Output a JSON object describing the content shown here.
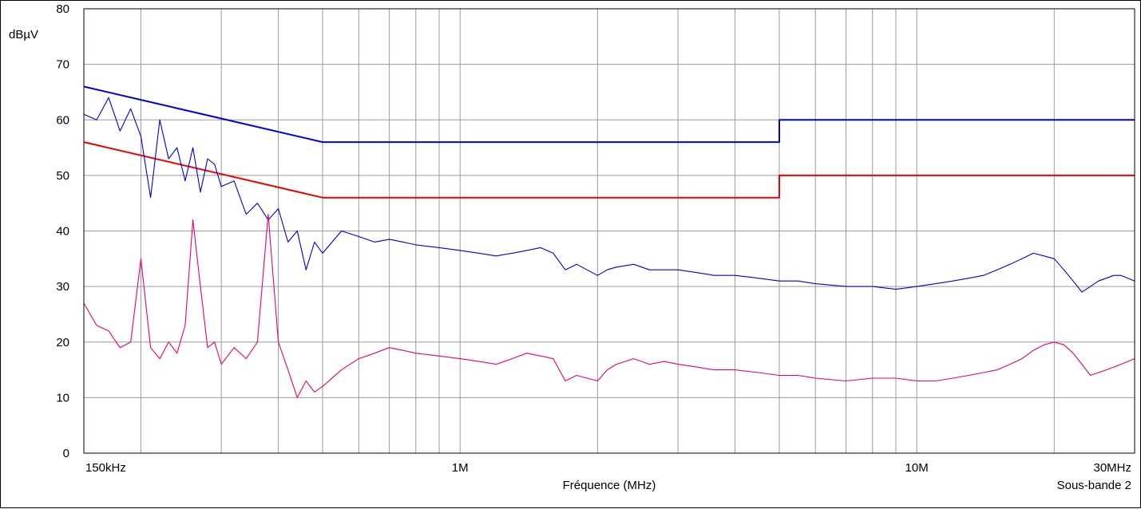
{
  "chart_data": {
    "type": "line",
    "title": "",
    "ylabel": "dBµV",
    "xlabel": "Fréquence (MHz)",
    "sub_label": "Sous-bande 2",
    "x_scale": "log",
    "xlim": [
      0.15,
      30
    ],
    "ylim": [
      0,
      80
    ],
    "grid": true,
    "y_ticks": [
      0,
      10,
      20,
      30,
      40,
      50,
      60,
      70,
      80
    ],
    "y_tick_labels": [
      "0",
      "10",
      "20",
      "30",
      "40",
      "50",
      "60",
      "70",
      "80"
    ],
    "x_ticks": [
      0.15,
      1,
      10,
      30
    ],
    "x_tick_labels": [
      "150kHz",
      "1M",
      "10M",
      "30MHz"
    ],
    "colors": {
      "qp_limit": "#0000dd",
      "avg_limit": "#ee0000",
      "peak_trace": "#0000cc",
      "avg_trace": "#e8006e",
      "grid": "#9a9a9a"
    },
    "series": [
      {
        "key": "qp_limit",
        "x": [
          0.15,
          0.5,
          5,
          5,
          30
        ],
        "y": [
          66,
          56,
          56,
          60,
          60
        ]
      },
      {
        "key": "avg_limit",
        "x": [
          0.15,
          0.5,
          5,
          5,
          30
        ],
        "y": [
          56,
          46,
          46,
          50,
          50
        ]
      },
      {
        "key": "peak_trace",
        "x": [
          0.15,
          0.16,
          0.17,
          0.18,
          0.19,
          0.2,
          0.21,
          0.22,
          0.23,
          0.24,
          0.25,
          0.26,
          0.27,
          0.28,
          0.29,
          0.3,
          0.32,
          0.34,
          0.36,
          0.38,
          0.4,
          0.42,
          0.44,
          0.46,
          0.48,
          0.5,
          0.55,
          0.6,
          0.65,
          0.7,
          0.75,
          0.8,
          0.9,
          1.0,
          1.1,
          1.2,
          1.3,
          1.4,
          1.5,
          1.6,
          1.7,
          1.8,
          2.0,
          2.1,
          2.2,
          2.4,
          2.6,
          2.8,
          3.0,
          3.3,
          3.6,
          4.0,
          4.5,
          5.0,
          5.5,
          6.0,
          7.0,
          8.0,
          9.0,
          10.0,
          11.0,
          12.0,
          13.0,
          14.0,
          15.0,
          16.0,
          17.0,
          18.0,
          19.0,
          20.0,
          21.0,
          22.0,
          23.0,
          24.0,
          25.0,
          26.0,
          27.0,
          28.0,
          29.0,
          30.0
        ],
        "y": [
          61,
          60,
          64,
          58,
          62,
          57,
          46,
          60,
          53,
          55,
          49,
          55,
          47,
          53,
          52,
          48,
          49,
          43,
          45,
          42,
          44,
          38,
          40,
          33,
          38,
          36,
          40,
          39,
          38,
          38.5,
          38,
          37.5,
          37,
          36.5,
          36,
          35.5,
          36,
          36.5,
          37,
          36,
          33,
          34,
          32,
          33,
          33.5,
          34,
          33,
          33,
          33,
          32.5,
          32,
          32,
          31.5,
          31,
          31,
          30.5,
          30,
          30,
          29.5,
          30,
          30.5,
          31,
          31.5,
          32,
          33,
          34,
          35,
          36,
          35.5,
          35,
          33,
          31,
          29,
          30,
          31,
          31.5,
          32,
          32,
          31.5,
          31
        ]
      },
      {
        "key": "avg_trace",
        "x": [
          0.15,
          0.16,
          0.17,
          0.18,
          0.19,
          0.2,
          0.21,
          0.22,
          0.23,
          0.24,
          0.25,
          0.26,
          0.27,
          0.28,
          0.29,
          0.3,
          0.32,
          0.34,
          0.36,
          0.38,
          0.4,
          0.42,
          0.44,
          0.46,
          0.48,
          0.5,
          0.55,
          0.6,
          0.65,
          0.7,
          0.75,
          0.8,
          0.9,
          1.0,
          1.1,
          1.2,
          1.3,
          1.4,
          1.5,
          1.6,
          1.7,
          1.8,
          2.0,
          2.1,
          2.2,
          2.4,
          2.6,
          2.8,
          3.0,
          3.3,
          3.6,
          4.0,
          4.5,
          5.0,
          5.5,
          6.0,
          7.0,
          8.0,
          9.0,
          10.0,
          11.0,
          12.0,
          13.0,
          14.0,
          15.0,
          16.0,
          17.0,
          18.0,
          19.0,
          20.0,
          21.0,
          22.0,
          23.0,
          24.0,
          25.0,
          26.0,
          27.0,
          28.0,
          29.0,
          30.0
        ],
        "y": [
          27,
          23,
          22,
          19,
          20,
          35,
          19,
          17,
          20,
          18,
          23,
          42,
          30,
          19,
          20,
          16,
          19,
          17,
          20,
          43,
          20,
          15,
          10,
          13,
          11,
          12,
          15,
          17,
          18,
          19,
          18.5,
          18,
          17.5,
          17,
          16.5,
          16,
          17,
          18,
          17.5,
          17,
          13,
          14,
          13,
          15,
          16,
          17,
          16,
          16.5,
          16,
          15.5,
          15,
          15,
          14.5,
          14,
          14,
          13.5,
          13,
          13.5,
          13.5,
          13,
          13,
          13.5,
          14,
          14.5,
          15,
          16,
          17,
          18.5,
          19.5,
          20,
          19.5,
          18,
          16,
          14,
          14.5,
          15,
          15.5,
          16,
          16.5,
          17
        ]
      }
    ]
  }
}
